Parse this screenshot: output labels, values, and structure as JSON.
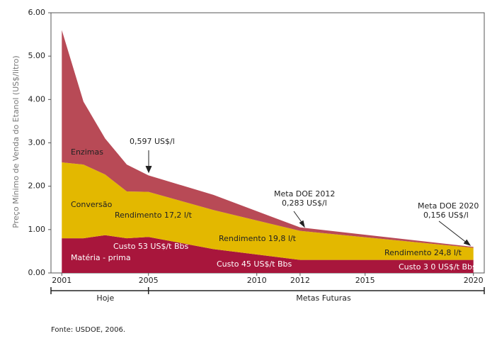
{
  "chart_data": {
    "type": "stacked-area",
    "y_label": "Preço Mínimo de Venda do Etanol (US$/litro)",
    "x": [
      2001,
      2002,
      2003,
      2004,
      2005,
      2008,
      2012,
      2020
    ],
    "series": [
      {
        "name": "Matéria - prima",
        "color": "#a8163c",
        "values": [
          0.8,
          0.8,
          0.87,
          0.8,
          0.83,
          0.55,
          0.3,
          0.3
        ]
      },
      {
        "name": "Conversão",
        "color": "#e3b800",
        "values": [
          1.75,
          1.7,
          1.4,
          1.08,
          1.04,
          0.9,
          0.67,
          0.28
        ]
      },
      {
        "name": "Enzimas",
        "color": "#b84a56",
        "values": [
          3.05,
          1.45,
          0.83,
          0.62,
          0.38,
          0.35,
          0.08,
          0.02
        ]
      }
    ],
    "xlim": [
      2000.5,
      2020.5
    ],
    "xticks": [
      2001,
      2005,
      2010,
      2012,
      2015,
      2020
    ],
    "ylim": [
      0,
      6
    ],
    "yticks": [
      {
        "value": 0,
        "label": "0.00"
      },
      {
        "value": 1,
        "label": "1.00"
      },
      {
        "value": 2,
        "label": "2.00"
      },
      {
        "value": 3,
        "label": "3.00"
      },
      {
        "value": 4,
        "label": "4.00"
      },
      {
        "value": 5,
        "label": "5.00"
      },
      {
        "value": 6,
        "label": "6.00"
      }
    ],
    "annotations": [
      "0,597 US$/l",
      "Rendimento 17,2 l/t",
      "Custo 53  US$/t  Bbs",
      "Meta DOE 2012",
      "0,283  US$/l",
      "Rendimento 19,8  l/t",
      "Custo 45  US$/t  Bbs",
      "Meta DOE 2020",
      "0,156 US$/l",
      "Rendimento 24,8  l/t",
      "Custo 3 0 US$/t  Bbs"
    ],
    "periods": [
      "Hoje",
      "Metas Futuras"
    ],
    "source": "Fonte: USDOE, 2006."
  }
}
